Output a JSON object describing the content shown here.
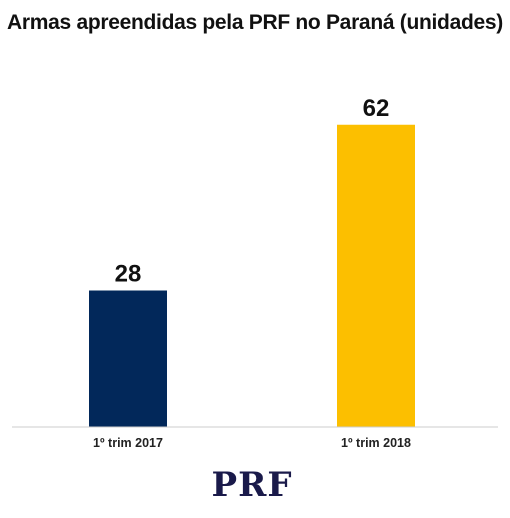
{
  "chart_data": {
    "type": "bar",
    "title": "Armas apreendidas pela PRF no Paraná (unidades)",
    "categories": [
      "1º trim 2017",
      "1º trim 2018"
    ],
    "values": [
      28,
      62
    ],
    "value_labels": [
      "28",
      "62"
    ],
    "bar_colors": [
      "#02285a",
      "#fcbf00"
    ],
    "ylim": [
      0,
      72
    ],
    "grid": false,
    "legend": "none",
    "xlabel": "",
    "ylabel": ""
  },
  "branding": {
    "logo_text": "PRF"
  },
  "colors": {
    "baseline": "#cccccc",
    "logo": "#1a1a4a"
  }
}
